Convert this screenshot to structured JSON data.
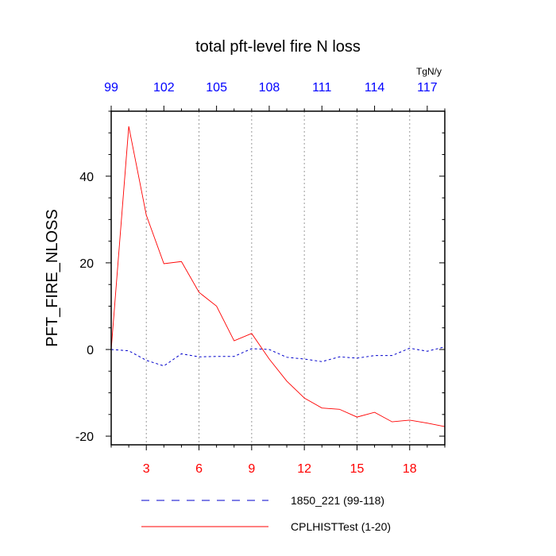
{
  "chart_data": {
    "type": "line",
    "title": "total pft-level fire N loss",
    "ylabel": "PFT_FIRE_NLOSS",
    "units": "TgN/y",
    "ylim": [
      -22,
      55
    ],
    "y_ticks": [
      -20,
      0,
      20,
      40
    ],
    "y_tick_labels": [
      "-20",
      "0",
      "20",
      "40"
    ],
    "y_minor_step": 5,
    "bottom_axis": {
      "range": [
        1,
        20
      ],
      "ticks": [
        3,
        6,
        9,
        12,
        15,
        18
      ],
      "tick_labels": [
        "3",
        "6",
        "9",
        "12",
        "15",
        "18"
      ],
      "color": "#ff0000"
    },
    "top_axis": {
      "range": [
        99,
        118
      ],
      "ticks": [
        99,
        102,
        105,
        108,
        111,
        114,
        117
      ],
      "tick_labels": [
        "99",
        "102",
        "105",
        "108",
        "111",
        "114",
        "117"
      ],
      "color": "#0000ff"
    },
    "grid": "vertical-dotted",
    "legend_position": "bottom",
    "series": [
      {
        "name": "1850_221 (99-118)",
        "color": "#0000cc",
        "dash": "dashed",
        "x": [
          99,
          100,
          101,
          102,
          103,
          104,
          105,
          106,
          107,
          108,
          109,
          110,
          111,
          112,
          113,
          114,
          115,
          116,
          117,
          118
        ],
        "values": [
          0,
          -0.3,
          -2.5,
          -3.8,
          -1.0,
          -1.7,
          -1.6,
          -1.6,
          0.2,
          0.0,
          -1.8,
          -2.2,
          -2.8,
          -1.7,
          -2.0,
          -1.4,
          -1.4,
          0.3,
          -0.4,
          0.6
        ]
      },
      {
        "name": "CPLHISTTest (1-20)",
        "color": "#ff0000",
        "dash": "solid",
        "x": [
          1,
          2,
          3,
          4,
          5,
          6,
          7,
          8,
          9,
          10,
          11,
          12,
          13,
          14,
          15,
          16,
          17,
          18,
          19,
          20
        ],
        "values": [
          0,
          51.5,
          31.0,
          19.8,
          20.3,
          13.2,
          10.0,
          2.0,
          3.7,
          -2.2,
          -7.3,
          -11.2,
          -13.5,
          -13.8,
          -15.6,
          -14.5,
          -16.7,
          -16.3,
          -17.0,
          -17.8
        ]
      }
    ]
  }
}
